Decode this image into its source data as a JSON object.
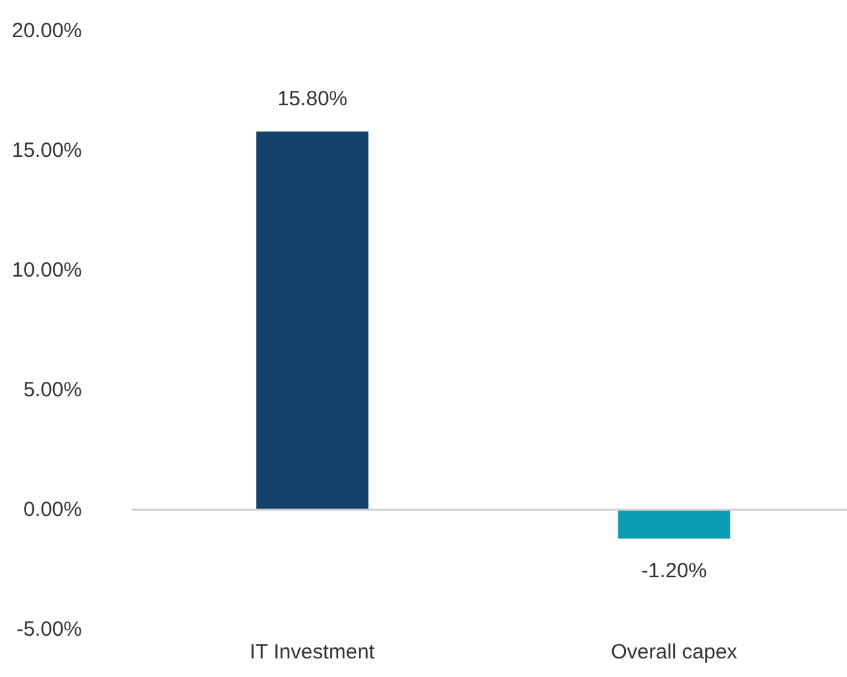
{
  "chart_data": {
    "type": "bar",
    "categories": [
      "IT Investment",
      "Overall capex"
    ],
    "values": [
      15.8,
      -1.2
    ],
    "colors": [
      "#16416b",
      "#0c9bb3"
    ],
    "value_labels": [
      "15.80%",
      "-1.20%"
    ],
    "ylim": [
      -5,
      20
    ],
    "yticks": [
      {
        "value": 20,
        "label": "20.00%"
      },
      {
        "value": 15,
        "label": "15.00%"
      },
      {
        "value": 10,
        "label": "10.00%"
      },
      {
        "value": 5,
        "label": "5.00%"
      },
      {
        "value": 0,
        "label": "0.00%"
      },
      {
        "value": -5,
        "label": "-5.00%"
      }
    ]
  }
}
